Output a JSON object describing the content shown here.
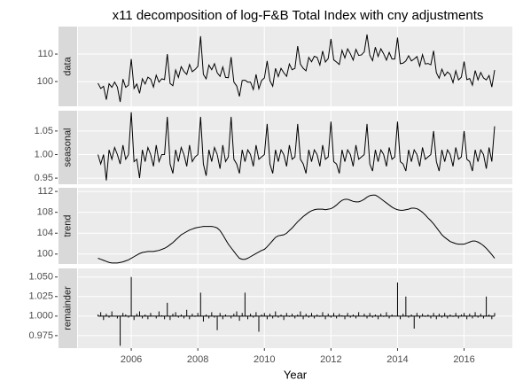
{
  "chart_data": {
    "type": "facet",
    "title": "x11 decomposition of log-F&B Total Index with cny adjustments",
    "xlabel": "Year",
    "xlim": [
      2004.4,
      2017.45
    ],
    "xticks": [
      2006,
      2008,
      2010,
      2012,
      2014,
      2016
    ],
    "grid": true,
    "color": "#000000",
    "x": [
      2005,
      2005.083,
      2005.167,
      2005.25,
      2005.333,
      2005.417,
      2005.5,
      2005.583,
      2005.667,
      2005.75,
      2005.833,
      2005.917,
      2006,
      2006.083,
      2006.167,
      2006.25,
      2006.333,
      2006.417,
      2006.5,
      2006.583,
      2006.667,
      2006.75,
      2006.833,
      2006.917,
      2007,
      2007.083,
      2007.167,
      2007.25,
      2007.333,
      2007.417,
      2007.5,
      2007.583,
      2007.667,
      2007.75,
      2007.833,
      2007.917,
      2008,
      2008.083,
      2008.167,
      2008.25,
      2008.333,
      2008.417,
      2008.5,
      2008.583,
      2008.667,
      2008.75,
      2008.833,
      2008.917,
      2009,
      2009.083,
      2009.167,
      2009.25,
      2009.333,
      2009.417,
      2009.5,
      2009.583,
      2009.667,
      2009.75,
      2009.833,
      2009.917,
      2010,
      2010.083,
      2010.167,
      2010.25,
      2010.333,
      2010.417,
      2010.5,
      2010.583,
      2010.667,
      2010.75,
      2010.833,
      2010.917,
      2011,
      2011.083,
      2011.167,
      2011.25,
      2011.333,
      2011.417,
      2011.5,
      2011.583,
      2011.667,
      2011.75,
      2011.833,
      2011.917,
      2012,
      2012.083,
      2012.167,
      2012.25,
      2012.333,
      2012.417,
      2012.5,
      2012.583,
      2012.667,
      2012.75,
      2012.833,
      2012.917,
      2013,
      2013.083,
      2013.167,
      2013.25,
      2013.333,
      2013.417,
      2013.5,
      2013.583,
      2013.667,
      2013.75,
      2013.833,
      2013.917,
      2014,
      2014.083,
      2014.167,
      2014.25,
      2014.333,
      2014.417,
      2014.5,
      2014.583,
      2014.667,
      2014.75,
      2014.833,
      2014.917,
      2015,
      2015.083,
      2015.167,
      2015.25,
      2015.333,
      2015.417,
      2015.5,
      2015.583,
      2015.667,
      2015.75,
      2015.833,
      2015.917,
      2016,
      2016.083,
      2016.167,
      2016.25,
      2016.333,
      2016.417,
      2016.5,
      2016.583,
      2016.667,
      2016.75,
      2016.833,
      2016.917
    ],
    "panels": [
      {
        "name": "data",
        "type": "line",
        "ylim": [
          91,
          120
        ],
        "yticks": [
          100,
          110
        ],
        "values": [
          99.4,
          97.5,
          98.3,
          93.4,
          99.2,
          97.9,
          99.8,
          98.0,
          92.6,
          100.9,
          97.9,
          98.7,
          108.2,
          97.5,
          99.1,
          95.7,
          101.0,
          99.1,
          101.6,
          100.9,
          98.0,
          102.3,
          99.8,
          101.0,
          100.7,
          110.0,
          99.3,
          98.5,
          104.2,
          101.5,
          105.4,
          103.7,
          102.6,
          106.2,
          103.6,
          104.4,
          105.5,
          116.5,
          102.6,
          101.0,
          106.0,
          104.3,
          106.5,
          103.2,
          101.9,
          105.3,
          101.5,
          101.4,
          108.9,
          99.8,
          98.4,
          94.6,
          100.4,
          100.5,
          99.8,
          99.8,
          97.1,
          102.6,
          97.4,
          100.4,
          101.3,
          107.5,
          100.3,
          98.3,
          104.8,
          101.8,
          104.8,
          103.2,
          101.9,
          106.4,
          104.3,
          104.8,
          112.9,
          106.3,
          104.8,
          103.9,
          108.8,
          107.2,
          109.2,
          108.8,
          106.0,
          111.1,
          107.1,
          108.4,
          115.5,
          107.9,
          107.1,
          106.2,
          111.4,
          108.6,
          111.9,
          110.1,
          107.8,
          111.7,
          109.5,
          109.7,
          110.8,
          117.1,
          109.6,
          107.6,
          112.5,
          109.1,
          111.9,
          110.1,
          107.8,
          110.6,
          108.2,
          108.2,
          116.0,
          106.5,
          106.7,
          107.5,
          109.4,
          107.5,
          108.2,
          109.1,
          105.6,
          109.8,
          106.4,
          106.6,
          106.1,
          111.2,
          103.2,
          101.2,
          104.5,
          102.1,
          103.5,
          102.6,
          99.6,
          103.9,
          100.6,
          101.6,
          107.3,
          100.7,
          101.1,
          98.7,
          104.0,
          100.6,
          103.3,
          101.3,
          100.6,
          102.2,
          98.0,
          104.2
        ]
      },
      {
        "name": "seasonal",
        "type": "line",
        "ylim": [
          0.937,
          1.093
        ],
        "yticks": [
          {
            "value": 0.95,
            "label": "0.95"
          },
          {
            "value": 1,
            "label": "1.00"
          },
          {
            "value": 1.05,
            "label": "1.05"
          }
        ],
        "values": [
          1.0,
          0.98,
          1.0,
          0.945,
          1.01,
          0.99,
          1.015,
          1.0,
          0.98,
          1.02,
          0.99,
          1.0,
          1.09,
          0.985,
          0.99,
          0.95,
          1.01,
          0.985,
          1.015,
          1.0,
          0.975,
          1.02,
          0.985,
          1.0,
          1.0,
          1.08,
          0.98,
          0.96,
          1.01,
          0.985,
          1.015,
          1.0,
          0.975,
          1.02,
          0.985,
          0.995,
          1.0,
          1.08,
          0.98,
          0.955,
          1.01,
          0.985,
          1.015,
          1.0,
          0.97,
          1.02,
          0.985,
          0.995,
          1.08,
          0.99,
          0.98,
          0.96,
          1.01,
          0.985,
          1.01,
          1.0,
          0.975,
          1.02,
          0.99,
          0.995,
          1.0,
          1.065,
          0.98,
          0.96,
          1.01,
          0.985,
          1.01,
          1.0,
          0.975,
          1.02,
          0.99,
          0.995,
          1.065,
          0.99,
          0.98,
          0.96,
          1.01,
          0.985,
          1.01,
          1.0,
          0.975,
          1.02,
          0.99,
          0.995,
          1.07,
          0.985,
          0.98,
          0.96,
          1.01,
          0.985,
          1.01,
          1.0,
          0.975,
          1.02,
          0.99,
          0.995,
          1.0,
          1.065,
          0.98,
          0.965,
          1.01,
          0.985,
          1.01,
          1.0,
          0.975,
          1.015,
          0.99,
          0.995,
          1.07,
          0.985,
          0.98,
          0.965,
          1.01,
          0.985,
          1.01,
          1.0,
          0.975,
          1.015,
          0.99,
          0.995,
          1.0,
          1.05,
          0.985,
          0.965,
          1.01,
          0.985,
          1.01,
          1.0,
          0.975,
          1.015,
          0.99,
          0.995,
          1.05,
          0.99,
          0.985,
          0.965,
          1.01,
          0.985,
          1.01,
          1.0,
          0.97,
          1.015,
          0.985,
          1.06
        ]
      },
      {
        "name": "trend",
        "type": "line",
        "ylim": [
          98.1,
          112.7
        ],
        "yticks": [
          100,
          104,
          108,
          112
        ],
        "values": [
          99.2,
          99.0,
          98.8,
          98.6,
          98.4,
          98.3,
          98.3,
          98.3,
          98.4,
          98.5,
          98.7,
          98.9,
          99.2,
          99.5,
          99.8,
          100.1,
          100.3,
          100.4,
          100.5,
          100.5,
          100.5,
          100.6,
          100.7,
          100.9,
          101.1,
          101.4,
          101.8,
          102.2,
          102.7,
          103.2,
          103.7,
          104.0,
          104.3,
          104.6,
          104.8,
          105.0,
          105.1,
          105.2,
          105.3,
          105.3,
          105.3,
          105.3,
          105.2,
          105.0,
          104.5,
          103.7,
          102.8,
          101.9,
          101.2,
          100.5,
          99.8,
          99.2,
          99.0,
          99.0,
          99.2,
          99.5,
          99.8,
          100.1,
          100.4,
          100.7,
          100.9,
          101.4,
          102.0,
          102.6,
          103.2,
          103.5,
          103.6,
          103.7,
          104.0,
          104.5,
          105.0,
          105.6,
          106.2,
          106.7,
          107.2,
          107.6,
          108.0,
          108.3,
          108.5,
          108.6,
          108.6,
          108.6,
          108.5,
          108.6,
          108.7,
          109.0,
          109.4,
          109.9,
          110.3,
          110.5,
          110.5,
          110.3,
          110.1,
          110.0,
          110.0,
          110.2,
          110.5,
          110.9,
          111.2,
          111.3,
          111.3,
          111.0,
          110.6,
          110.2,
          109.8,
          109.4,
          109.0,
          108.7,
          108.5,
          108.4,
          108.4,
          108.5,
          108.6,
          108.8,
          108.8,
          108.7,
          108.4,
          108.0,
          107.5,
          106.9,
          106.4,
          105.8,
          105.1,
          104.4,
          103.7,
          103.2,
          102.8,
          102.4,
          102.2,
          102.0,
          101.9,
          101.9,
          101.9,
          102.1,
          102.3,
          102.5,
          102.5,
          102.3,
          102.0,
          101.6,
          101.1,
          100.5,
          99.9,
          99.2
        ]
      },
      {
        "name": "remainder",
        "type": "spike",
        "baseline": 1,
        "ylim": [
          0.959,
          1.061
        ],
        "yticks": [
          {
            "value": 0.975,
            "label": "0.975"
          },
          {
            "value": 1,
            "label": "1.000"
          },
          {
            "value": 1.025,
            "label": "1.025"
          },
          {
            "value": 1.05,
            "label": "1.050"
          }
        ],
        "values": [
          1.002,
          1.005,
          0.995,
          1.003,
          0.998,
          1.006,
          1.0,
          0.997,
          0.962,
          1.004,
          1.002,
          0.998,
          1.05,
          0.995,
          1.003,
          1.006,
          0.997,
          1.002,
          0.996,
          1.004,
          1.0,
          0.997,
          1.006,
          1.001,
          0.996,
          1.017,
          0.995,
          1.003,
          1.005,
          0.998,
          1.002,
          0.997,
          1.008,
          0.996,
          1.003,
          0.999,
          1.004,
          1.03,
          0.993,
          1.002,
          0.997,
          1.005,
          0.998,
          0.982,
          1.004,
          0.996,
          1.002,
          1.0,
          0.997,
          1.003,
          1.006,
          0.994,
          1.004,
          1.03,
          0.996,
          1.003,
          0.998,
          1.005,
          0.98,
          1.002,
          1.004,
          0.996,
          1.003,
          0.997,
          1.006,
          0.998,
          1.002,
          0.995,
          1.004,
          0.999,
          1.003,
          0.997,
          1.002,
          1.006,
          0.996,
          1.003,
          0.998,
          1.004,
          0.997,
          1.002,
          0.999,
          1.005,
          0.996,
          1.003,
          0.998,
          1.004,
          0.997,
          1.003,
          1.001,
          0.996,
          1.004,
          0.998,
          1.002,
          0.997,
          1.005,
          1.0,
          1.003,
          0.997,
          1.004,
          0.998,
          1.002,
          0.996,
          1.003,
          0.999,
          1.005,
          0.997,
          1.002,
          1.0,
          1.043,
          0.996,
          1.003,
          1.025,
          0.998,
          1.002,
          0.984,
          1.004,
          0.997,
          1.003,
          0.999,
          1.002,
          0.997,
          1.004,
          0.996,
          1.003,
          0.998,
          1.004,
          0.997,
          1.002,
          0.999,
          1.004,
          0.997,
          1.002,
          1.004,
          0.996,
          1.003,
          0.997,
          1.005,
          0.998,
          1.003,
          0.997,
          1.025,
          1.002,
          0.996,
          1.004
        ]
      }
    ]
  }
}
